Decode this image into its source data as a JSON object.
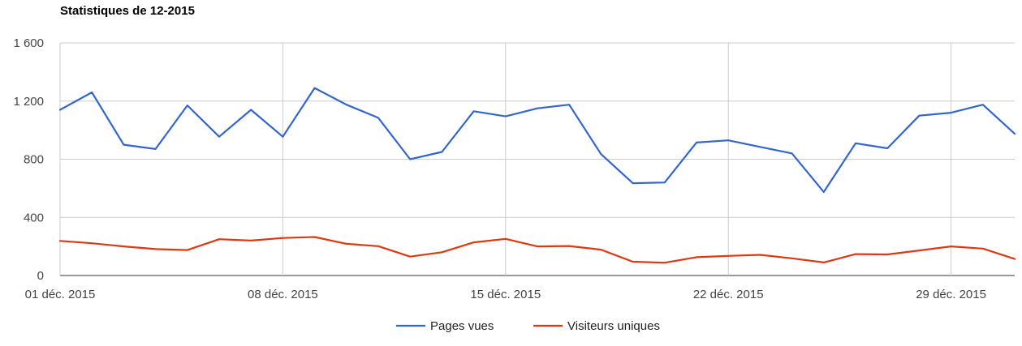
{
  "chart_data": {
    "type": "line",
    "title": "Statistiques de 12-2015",
    "xlabel": "",
    "ylabel": "",
    "ylim": [
      0,
      1600
    ],
    "yticks": [
      0,
      400,
      800,
      1200,
      1600
    ],
    "ytick_labels": [
      "0",
      "400",
      "800",
      "1 200",
      "1 600"
    ],
    "x": [
      "2015-12-01",
      "2015-12-02",
      "2015-12-03",
      "2015-12-04",
      "2015-12-05",
      "2015-12-06",
      "2015-12-07",
      "2015-12-08",
      "2015-12-09",
      "2015-12-10",
      "2015-12-11",
      "2015-12-12",
      "2015-12-13",
      "2015-12-14",
      "2015-12-15",
      "2015-12-16",
      "2015-12-17",
      "2015-12-18",
      "2015-12-19",
      "2015-12-20",
      "2015-12-21",
      "2015-12-22",
      "2015-12-23",
      "2015-12-24",
      "2015-12-25",
      "2015-12-26",
      "2015-12-27",
      "2015-12-28",
      "2015-12-29",
      "2015-12-30",
      "2015-12-31"
    ],
    "xticks": [
      "2015-12-01",
      "2015-12-08",
      "2015-12-15",
      "2015-12-22",
      "2015-12-29"
    ],
    "xtick_labels": [
      "01 déc. 2015",
      "08 déc. 2015",
      "15 déc. 2015",
      "22 déc. 2015",
      "29 déc. 2015"
    ],
    "grid": true,
    "legend_position": "bottom",
    "series": [
      {
        "name": "Pages vues",
        "color": "#3366cc",
        "values": [
          1140,
          1260,
          900,
          870,
          1170,
          955,
          1140,
          955,
          1290,
          1175,
          1085,
          800,
          850,
          1130,
          1095,
          1150,
          1175,
          835,
          635,
          640,
          915,
          930,
          885,
          840,
          575,
          910,
          875,
          1100,
          1120,
          1175,
          975
        ]
      },
      {
        "name": "Visiteurs uniques",
        "color": "#dc3912",
        "values": [
          238,
          222,
          200,
          182,
          175,
          250,
          240,
          258,
          265,
          218,
          202,
          130,
          160,
          228,
          252,
          200,
          203,
          178,
          95,
          88,
          126,
          135,
          142,
          118,
          90,
          147,
          145,
          172,
          200,
          185,
          114
        ]
      }
    ]
  }
}
